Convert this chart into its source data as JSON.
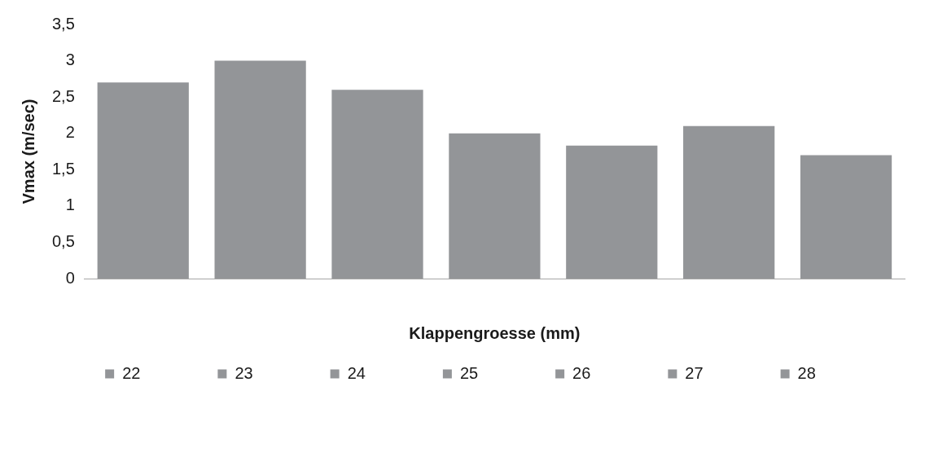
{
  "chart_data": {
    "type": "bar",
    "xlabel": "Klappengroesse (mm)",
    "ylabel": "Vmax (m/sec)",
    "categories": [
      null
    ],
    "series": [
      {
        "name": "22",
        "color": "#939598",
        "values": [
          2.7
        ]
      },
      {
        "name": "23",
        "color": "#939598",
        "values": [
          3.0
        ]
      },
      {
        "name": "24",
        "color": "#939598",
        "values": [
          2.6
        ]
      },
      {
        "name": "25",
        "color": "#939598",
        "values": [
          2.0
        ]
      },
      {
        "name": "26",
        "color": "#939598",
        "values": [
          1.83
        ]
      },
      {
        "name": "27",
        "color": "#939598",
        "values": [
          2.1
        ]
      },
      {
        "name": "28",
        "color": "#939598",
        "values": [
          1.7
        ]
      }
    ],
    "ylim": [
      0,
      3.5
    ],
    "yticks": [
      0,
      {
        "value": 0.5,
        "label": "0,5"
      },
      1,
      {
        "value": 1.5,
        "label": "1,5"
      },
      2,
      {
        "value": 2.5,
        "label": "2,5"
      },
      3,
      {
        "value": 3.5,
        "label": "3,5"
      }
    ],
    "grid": false,
    "legend": "bottom"
  }
}
